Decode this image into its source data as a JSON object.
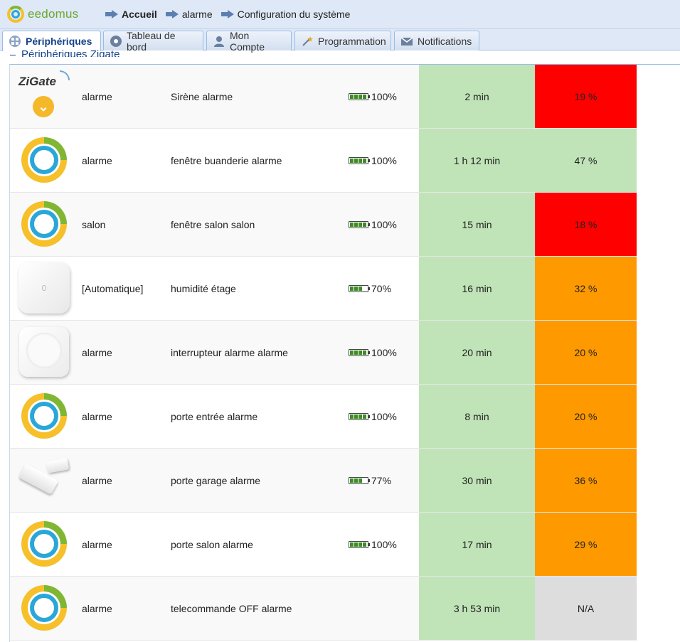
{
  "app": {
    "logo_text": "eedomus"
  },
  "breadcrumb": [
    "Accueil",
    "alarme",
    "Configuration du système"
  ],
  "tabs": [
    {
      "label": "Périphériques",
      "icon": "cubes-icon",
      "active": true
    },
    {
      "label": "Tableau de bord",
      "icon": "dashboard-icon",
      "active": false
    },
    {
      "label": "Mon Compte",
      "icon": "user-icon",
      "active": false
    },
    {
      "label": "Programmation",
      "icon": "magic-wand-icon",
      "active": false
    },
    {
      "label": "Notifications",
      "icon": "envelope-icon",
      "active": false
    }
  ],
  "panel": {
    "title": "Périphériques Zigate"
  },
  "colors": {
    "green": "#c0e4b8",
    "red": "#ff0000",
    "orange": "#ff9900",
    "gray": "#dddddd"
  },
  "devices": [
    {
      "icon": "zigate-icon",
      "room": "alarme",
      "name": "Sirène alarme",
      "battery": "100%",
      "battery_level": 1.0,
      "time": "2 min",
      "pct": "19 %",
      "pct_color": "#ff0000"
    },
    {
      "icon": "eedomus-ring-icon",
      "room": "alarme",
      "name": "fenêtre buanderie alarme",
      "battery": "100%",
      "battery_level": 1.0,
      "time": "1 h 12 min",
      "pct": "47 %",
      "pct_color": "#c0e4b8"
    },
    {
      "icon": "eedomus-ring-icon",
      "room": "salon",
      "name": "fenêtre salon salon",
      "battery": "100%",
      "battery_level": 1.0,
      "time": "15 min",
      "pct": "18 %",
      "pct_color": "#ff0000"
    },
    {
      "icon": "temperature-sensor-icon",
      "room": "[Automatique]",
      "name": "humidité étage",
      "battery": "70%",
      "battery_level": 0.7,
      "time": "16 min",
      "pct": "32 %",
      "pct_color": "#ff9900"
    },
    {
      "icon": "button-sensor-icon",
      "room": "alarme",
      "name": "interrupteur alarme alarme",
      "battery": "100%",
      "battery_level": 1.0,
      "time": "20 min",
      "pct": "20 %",
      "pct_color": "#ff9900"
    },
    {
      "icon": "eedomus-ring-icon",
      "room": "alarme",
      "name": "porte entrée alarme",
      "battery": "100%",
      "battery_level": 1.0,
      "time": "8 min",
      "pct": "20 %",
      "pct_color": "#ff9900"
    },
    {
      "icon": "door-sensor-icon",
      "room": "alarme",
      "name": "porte garage alarme",
      "battery": "77%",
      "battery_level": 0.77,
      "time": "30 min",
      "pct": "36 %",
      "pct_color": "#ff9900"
    },
    {
      "icon": "eedomus-ring-icon",
      "room": "alarme",
      "name": "porte salon alarme",
      "battery": "100%",
      "battery_level": 1.0,
      "time": "17 min",
      "pct": "29 %",
      "pct_color": "#ff9900"
    },
    {
      "icon": "eedomus-ring-icon",
      "room": "alarme",
      "name": "telecommande OFF alarme",
      "battery": "",
      "battery_level": null,
      "time": "3 h 53 min",
      "pct": "N/A",
      "pct_color": "#dddddd"
    }
  ]
}
